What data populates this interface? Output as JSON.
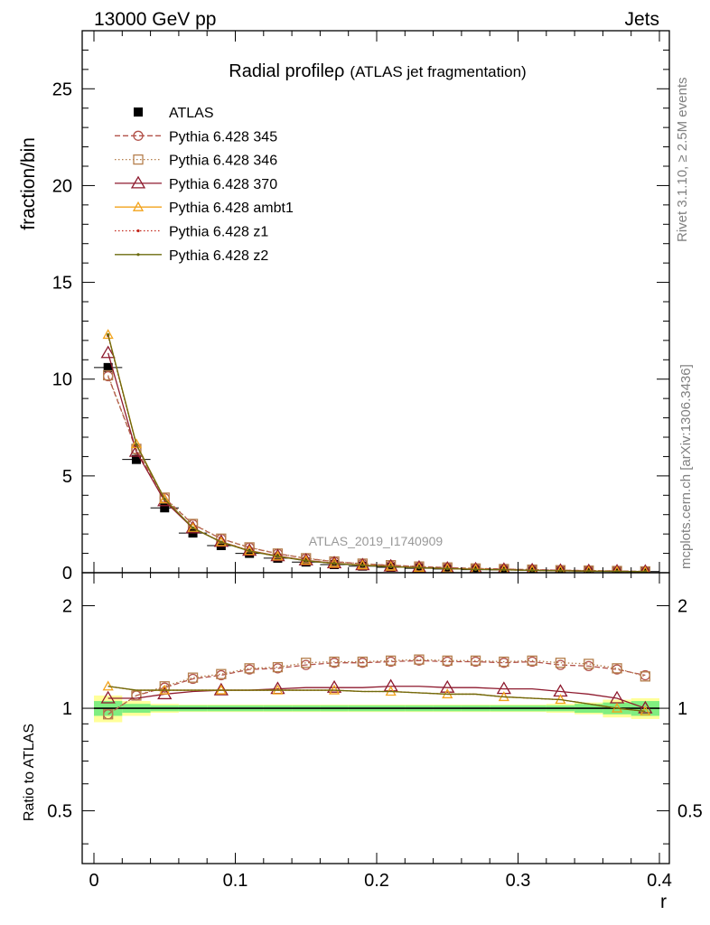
{
  "header": {
    "left": "13000 GeV pp",
    "right": "Jets"
  },
  "side": {
    "rivet": "Rivet 3.1.10, ≥ 2.5M events",
    "mcplots": "mcplots.cern.ch [arXiv:1306.3436]"
  },
  "colors": {
    "ATLAS": "#000000",
    "p345": "#b2524a",
    "p346": "#b57f4d",
    "p370": "#8e1a2e",
    "ambt1": "#f2a31b",
    "z1": "#c42a1e",
    "z2": "#6b6b0e",
    "band_inner": "#80ee80",
    "band_outer": "#ffff99"
  },
  "chart_data": [
    {
      "type": "line",
      "title": "Radial profile",
      "title_symbol": "ρ",
      "subtitle": "(ATLAS jet fragmentation)",
      "analysis_tag": "ATLAS_2019_I1740909",
      "ylabel": "fraction/bin",
      "xlim": [
        0.0,
        0.4
      ],
      "ylim": [
        0,
        28
      ],
      "yticks": [
        0,
        5,
        10,
        15,
        20,
        25
      ],
      "ytick_labels": [
        "0",
        "5",
        "10",
        "15",
        "20",
        "25"
      ],
      "legend_position": "upper-left",
      "x": [
        0.01,
        0.03,
        0.05,
        0.07,
        0.09,
        0.11,
        0.13,
        0.15,
        0.17,
        0.19,
        0.21,
        0.23,
        0.25,
        0.27,
        0.29,
        0.31,
        0.33,
        0.35,
        0.37,
        0.39
      ],
      "series": [
        {
          "name": "ATLAS",
          "style": "data",
          "color_key": "ATLAS",
          "marker": "square",
          "values": [
            10.6,
            5.85,
            3.35,
            2.05,
            1.4,
            1.0,
            0.75,
            0.55,
            0.42,
            0.34,
            0.28,
            0.23,
            0.19,
            0.16,
            0.14,
            0.12,
            0.1,
            0.08,
            0.07,
            0.06
          ]
        },
        {
          "name": "Pythia 6.428 345",
          "style": "dashed",
          "color_key": "p345",
          "marker": "circle",
          "values": [
            10.15,
            6.35,
            3.85,
            2.5,
            1.75,
            1.3,
            0.98,
            0.74,
            0.57,
            0.46,
            0.38,
            0.32,
            0.26,
            0.22,
            0.19,
            0.16,
            0.13,
            0.11,
            0.09,
            0.07
          ]
        },
        {
          "name": "Pythia 6.428 346",
          "style": "dotted",
          "color_key": "p346",
          "marker": "square-open",
          "values": [
            10.2,
            6.4,
            3.88,
            2.52,
            1.76,
            1.31,
            0.99,
            0.75,
            0.58,
            0.47,
            0.39,
            0.32,
            0.27,
            0.22,
            0.19,
            0.16,
            0.13,
            0.11,
            0.09,
            0.07
          ]
        },
        {
          "name": "Pythia 6.428 370",
          "style": "solid",
          "color_key": "p370",
          "marker": "triangle",
          "values": [
            11.35,
            6.25,
            3.7,
            2.3,
            1.6,
            1.14,
            0.86,
            0.64,
            0.49,
            0.39,
            0.33,
            0.27,
            0.22,
            0.18,
            0.16,
            0.13,
            0.11,
            0.09,
            0.075,
            0.06
          ]
        },
        {
          "name": "Pythia 6.428 ambt1",
          "style": "solid",
          "color_key": "ambt1",
          "marker": "triangle-small",
          "values": [
            12.3,
            6.65,
            3.8,
            2.32,
            1.59,
            1.13,
            0.85,
            0.63,
            0.48,
            0.39,
            0.32,
            0.26,
            0.21,
            0.18,
            0.15,
            0.12,
            0.1,
            0.085,
            0.07,
            0.06
          ]
        },
        {
          "name": "Pythia 6.428 z1",
          "style": "dotted",
          "color_key": "z1",
          "marker": "dot",
          "values": [
            12.25,
            6.6,
            3.78,
            2.31,
            1.58,
            1.12,
            0.84,
            0.62,
            0.48,
            0.38,
            0.31,
            0.26,
            0.21,
            0.17,
            0.15,
            0.12,
            0.1,
            0.08,
            0.07,
            0.06
          ]
        },
        {
          "name": "Pythia 6.428 z2",
          "style": "solid",
          "color_key": "z2",
          "marker": "dot",
          "values": [
            12.3,
            6.62,
            3.8,
            2.31,
            1.58,
            1.12,
            0.84,
            0.62,
            0.48,
            0.38,
            0.31,
            0.26,
            0.21,
            0.17,
            0.15,
            0.12,
            0.1,
            0.08,
            0.07,
            0.06
          ]
        }
      ]
    },
    {
      "type": "line",
      "title": "",
      "ylabel": "Ratio to ATLAS",
      "xlabel": "r",
      "xlim": [
        0.0,
        0.4
      ],
      "ylim": [
        0.35,
        2.5
      ],
      "y_scale": "log",
      "xticks": [
        0,
        0.1,
        0.2,
        0.3,
        0.4
      ],
      "xtick_labels": [
        "0",
        "0.1",
        "0.2",
        "0.3",
        "0.4"
      ],
      "yticks": [
        0.5,
        1,
        2
      ],
      "ytick_labels": [
        "0.5",
        "1",
        "2"
      ],
      "x": [
        0.01,
        0.03,
        0.05,
        0.07,
        0.09,
        0.11,
        0.13,
        0.15,
        0.17,
        0.19,
        0.21,
        0.23,
        0.25,
        0.27,
        0.29,
        0.31,
        0.33,
        0.35,
        0.37,
        0.39
      ],
      "band_inner": [
        [
          0.95,
          1.05
        ],
        [
          0.97,
          1.03
        ],
        [
          0.98,
          1.02
        ],
        [
          0.98,
          1.02
        ],
        [
          0.98,
          1.02
        ],
        [
          0.98,
          1.02
        ],
        [
          0.98,
          1.02
        ],
        [
          0.98,
          1.02
        ],
        [
          0.98,
          1.02
        ],
        [
          0.98,
          1.02
        ],
        [
          0.98,
          1.02
        ],
        [
          0.98,
          1.02
        ],
        [
          0.98,
          1.02
        ],
        [
          0.98,
          1.02
        ],
        [
          0.98,
          1.02
        ],
        [
          0.98,
          1.02
        ],
        [
          0.98,
          1.02
        ],
        [
          0.97,
          1.03
        ],
        [
          0.96,
          1.04
        ],
        [
          0.95,
          1.05
        ]
      ],
      "band_outer": [
        [
          0.91,
          1.09
        ],
        [
          0.95,
          1.05
        ],
        [
          0.97,
          1.03
        ],
        [
          0.975,
          1.025
        ],
        [
          0.975,
          1.025
        ],
        [
          0.975,
          1.025
        ],
        [
          0.975,
          1.025
        ],
        [
          0.975,
          1.025
        ],
        [
          0.975,
          1.025
        ],
        [
          0.975,
          1.025
        ],
        [
          0.975,
          1.025
        ],
        [
          0.975,
          1.025
        ],
        [
          0.975,
          1.025
        ],
        [
          0.975,
          1.025
        ],
        [
          0.975,
          1.025
        ],
        [
          0.975,
          1.025
        ],
        [
          0.97,
          1.03
        ],
        [
          0.96,
          1.04
        ],
        [
          0.94,
          1.06
        ],
        [
          0.93,
          1.07
        ]
      ],
      "series": [
        {
          "name": "Pythia 6.428 345",
          "style": "dashed",
          "color_key": "p345",
          "marker": "circle",
          "values": [
            0.96,
            1.09,
            1.15,
            1.22,
            1.25,
            1.3,
            1.31,
            1.34,
            1.36,
            1.36,
            1.37,
            1.38,
            1.37,
            1.37,
            1.36,
            1.37,
            1.34,
            1.33,
            1.3,
            1.25
          ]
        },
        {
          "name": "Pythia 6.428 346",
          "style": "dotted",
          "color_key": "p346",
          "marker": "square-open",
          "values": [
            0.96,
            1.09,
            1.16,
            1.23,
            1.26,
            1.31,
            1.32,
            1.36,
            1.37,
            1.37,
            1.38,
            1.39,
            1.38,
            1.38,
            1.37,
            1.38,
            1.36,
            1.35,
            1.31,
            1.24
          ]
        },
        {
          "name": "Pythia 6.428 370",
          "style": "solid",
          "color_key": "p370",
          "marker": "triangle",
          "values": [
            1.07,
            1.07,
            1.1,
            1.12,
            1.13,
            1.13,
            1.14,
            1.15,
            1.15,
            1.15,
            1.16,
            1.16,
            1.15,
            1.15,
            1.14,
            1.14,
            1.12,
            1.1,
            1.07,
            1.0
          ]
        },
        {
          "name": "Pythia 6.428 ambt1",
          "style": "solid",
          "color_key": "ambt1",
          "marker": "triangle-small",
          "values": [
            1.16,
            1.13,
            1.13,
            1.13,
            1.13,
            1.13,
            1.13,
            1.13,
            1.13,
            1.12,
            1.12,
            1.11,
            1.1,
            1.1,
            1.08,
            1.07,
            1.06,
            1.03,
            1.0,
            0.98
          ]
        },
        {
          "name": "Pythia 6.428 z1",
          "style": "dotted",
          "color_key": "z1",
          "marker": "dot",
          "values": [
            1.16,
            1.13,
            1.13,
            1.13,
            1.13,
            1.13,
            1.13,
            1.13,
            1.13,
            1.12,
            1.12,
            1.11,
            1.1,
            1.1,
            1.08,
            1.07,
            1.06,
            1.03,
            1.0,
            0.98
          ]
        },
        {
          "name": "Pythia 6.428 z2",
          "style": "solid",
          "color_key": "z2",
          "marker": "dot",
          "values": [
            1.16,
            1.13,
            1.13,
            1.13,
            1.13,
            1.13,
            1.13,
            1.13,
            1.13,
            1.12,
            1.12,
            1.11,
            1.1,
            1.1,
            1.08,
            1.07,
            1.06,
            1.03,
            1.0,
            0.98
          ]
        }
      ]
    }
  ]
}
